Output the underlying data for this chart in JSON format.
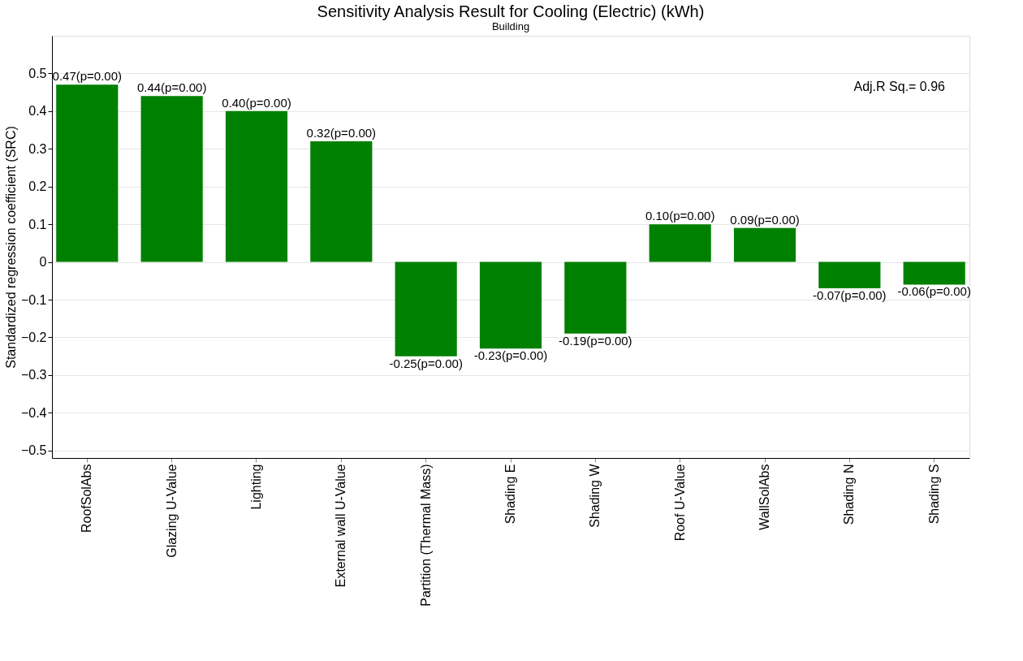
{
  "chart_data": {
    "type": "bar",
    "title": "Sensitivity Analysis Result for Cooling (Electric) (kWh)",
    "subtitle": "Building",
    "ylabel": "Standardized regression coefficient (SRC)",
    "categories": [
      "RoofSolAbs",
      "Glazing U-Value",
      "Lighting",
      "External wall U-Value",
      "Partition (Thermal Mass)",
      "Shading E",
      "Shading W",
      "Roof U-Value",
      "WallSolAbs",
      "Shading N",
      "Shading S"
    ],
    "values": [
      0.47,
      0.44,
      0.4,
      0.32,
      -0.25,
      -0.23,
      -0.19,
      0.1,
      0.09,
      -0.07,
      -0.06
    ],
    "value_labels": [
      "0.47(p=0.00)",
      "0.44(p=0.00)",
      "0.40(p=0.00)",
      "0.32(p=0.00)",
      "-0.25(p=0.00)",
      "-0.23(p=0.00)",
      "-0.19(p=0.00)",
      "0.10(p=0.00)",
      "0.09(p=0.00)",
      "-0.07(p=0.00)",
      "-0.06(p=0.00)"
    ],
    "color": "#008000",
    "ylim": [
      -0.52,
      0.6
    ],
    "yticks": [
      -0.5,
      -0.4,
      -0.3,
      -0.2,
      -0.1,
      0,
      0.1,
      0.2,
      0.3,
      0.4,
      0.5
    ],
    "grid": "y",
    "annotations": [
      "Adj.R Sq.= 0.96"
    ]
  }
}
